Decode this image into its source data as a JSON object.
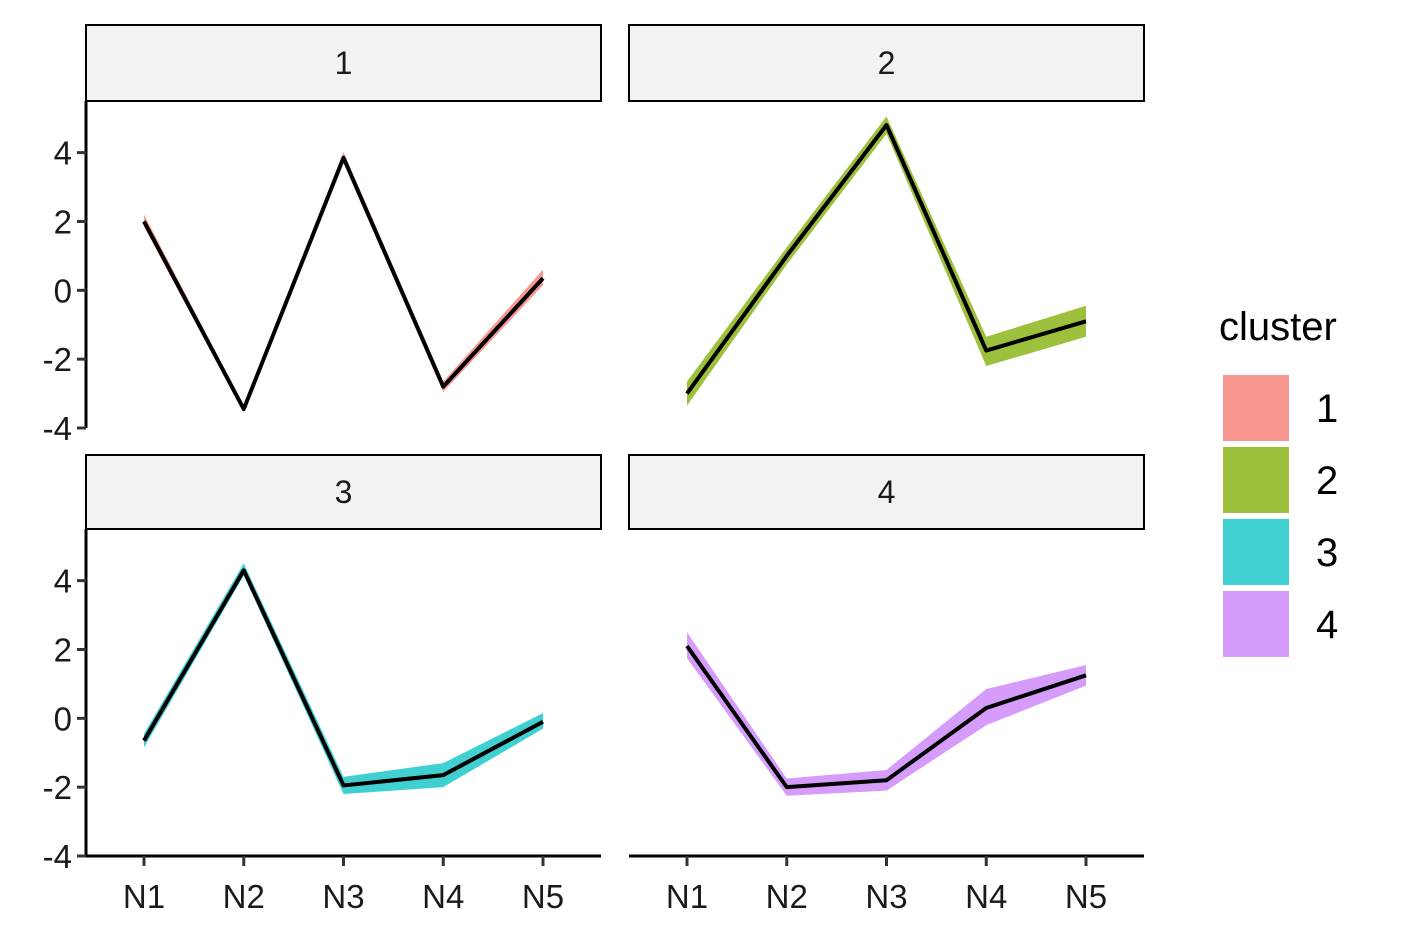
{
  "chart_data": {
    "type": "line",
    "subtype": "faceted line with ribbon",
    "categories": [
      "N1",
      "N2",
      "N3",
      "N4",
      "N5"
    ],
    "ylim": [
      -4,
      5.5
    ],
    "yticks": [
      4,
      2,
      0,
      -2,
      -4
    ],
    "ytick_labels": [
      "4",
      "2",
      "0",
      "-2",
      "-4"
    ],
    "grid": false,
    "legend": {
      "title": "cluster",
      "placement": "right",
      "entries": [
        {
          "label": "1",
          "color": "#F8978F"
        },
        {
          "label": "2",
          "color": "#9DC13D"
        },
        {
          "label": "3",
          "color": "#40D0D2"
        },
        {
          "label": "4",
          "color": "#D59CFB"
        }
      ]
    },
    "facets": [
      {
        "label": "1",
        "color": "#F8978F",
        "mean": [
          2.0,
          -3.45,
          3.85,
          -2.8,
          0.35
        ],
        "lower": [
          1.85,
          -3.55,
          3.72,
          -2.95,
          0.15
        ],
        "upper": [
          2.2,
          -3.35,
          4.02,
          -2.65,
          0.6
        ]
      },
      {
        "label": "2",
        "color": "#9DC13D",
        "mean": [
          -3.0,
          1.0,
          4.8,
          -1.75,
          -0.9
        ],
        "lower": [
          -3.35,
          0.75,
          4.55,
          -2.2,
          -1.35
        ],
        "upper": [
          -2.65,
          1.25,
          5.05,
          -1.35,
          -0.45
        ]
      },
      {
        "label": "3",
        "color": "#40D0D2",
        "mean": [
          -0.65,
          4.3,
          -1.95,
          -1.65,
          -0.1
        ],
        "lower": [
          -0.85,
          4.15,
          -2.2,
          -2.0,
          -0.3
        ],
        "upper": [
          -0.45,
          4.5,
          -1.7,
          -1.3,
          0.15
        ]
      },
      {
        "label": "4",
        "color": "#D59CFB",
        "mean": [
          2.1,
          -2.0,
          -1.8,
          0.3,
          1.25
        ],
        "lower": [
          1.75,
          -2.25,
          -2.1,
          -0.2,
          0.95
        ],
        "upper": [
          2.5,
          -1.75,
          -1.5,
          0.85,
          1.55
        ]
      }
    ]
  }
}
